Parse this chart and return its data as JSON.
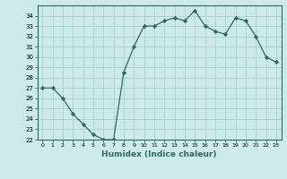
{
  "x": [
    0,
    1,
    2,
    3,
    4,
    5,
    6,
    7,
    8,
    9,
    10,
    11,
    12,
    13,
    14,
    15,
    16,
    17,
    18,
    19,
    20,
    21,
    22,
    23
  ],
  "y": [
    27,
    27,
    26,
    24.5,
    23.5,
    22.5,
    22,
    22,
    28.5,
    31,
    33,
    33,
    33.5,
    33.8,
    33.5,
    34.5,
    33,
    32.5,
    32.2,
    33.8,
    33.5,
    32,
    30,
    29.5
  ],
  "line_color": "#2e6b5e",
  "marker": "D",
  "marker_size": 2.2,
  "bg_color": "#cceae7",
  "grid_color": "#b0d4d0",
  "xlabel": "Humidex (Indice chaleur)",
  "ylim": [
    22,
    35
  ],
  "xlim": [
    -0.5,
    23.5
  ],
  "yticks": [
    22,
    23,
    24,
    25,
    26,
    27,
    28,
    29,
    30,
    31,
    32,
    33,
    34
  ],
  "xticks": [
    0,
    1,
    2,
    3,
    4,
    5,
    6,
    7,
    8,
    9,
    10,
    11,
    12,
    13,
    14,
    15,
    16,
    17,
    18,
    19,
    20,
    21,
    22,
    23
  ]
}
